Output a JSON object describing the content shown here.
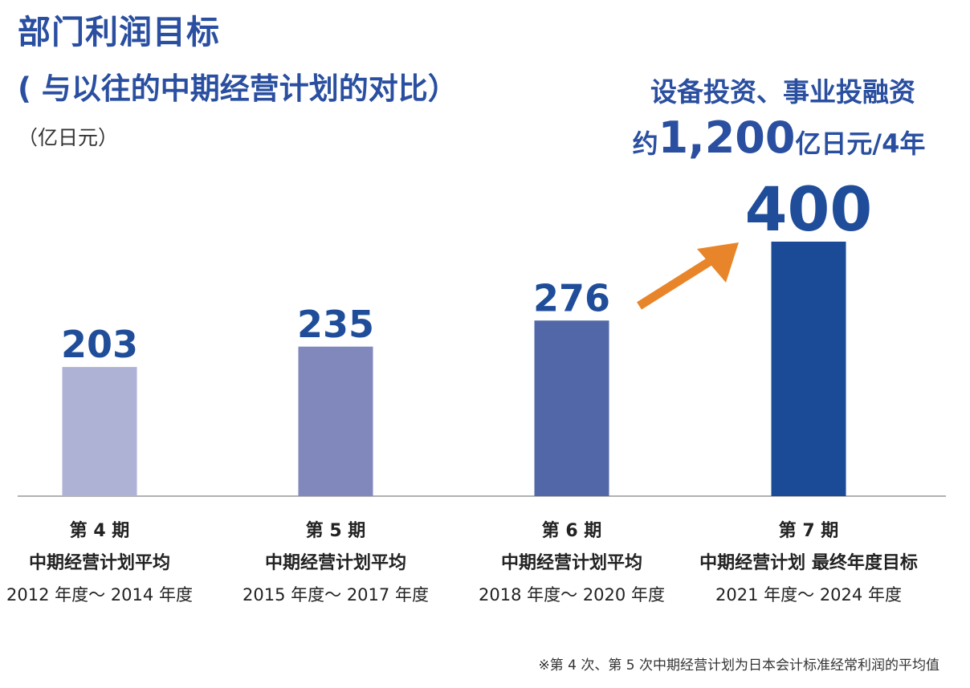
{
  "header": {
    "title": "部门利润目标",
    "subtitle": "( 与以往的中期经营计划的对比）",
    "unit": "（亿日元）"
  },
  "investment": {
    "line1": "设备投资、事业投融资",
    "prefix": "约",
    "amount": "1,200",
    "suffix": "亿日元/4年"
  },
  "chart_data": {
    "type": "bar",
    "categories": [
      "第 4 期",
      "第 5 期",
      "第 6 期",
      "第 7 期"
    ],
    "category_sublabels": [
      [
        "中期经营计划平均",
        "2012 年度～ 2014 年度"
      ],
      [
        "中期经营计划平均",
        "2015 年度～ 2017 年度"
      ],
      [
        "中期经营计划平均",
        "2018 年度～ 2020 年度"
      ],
      [
        "中期经营计划 最终年度目标",
        "2021 年度～ 2024 年度"
      ]
    ],
    "values": [
      203,
      235,
      276,
      400
    ],
    "bar_colors": [
      "#aeb2d4",
      "#8189bc",
      "#5267a8",
      "#1b4a96"
    ],
    "value_label_color": "#1f4d9a",
    "arrow_color": "#e8852a",
    "ylim": [
      0,
      400
    ],
    "grid": false
  },
  "footnote": "※第 4 次、第 5 次中期经营计划为日本会计标准经常利润的平均值"
}
